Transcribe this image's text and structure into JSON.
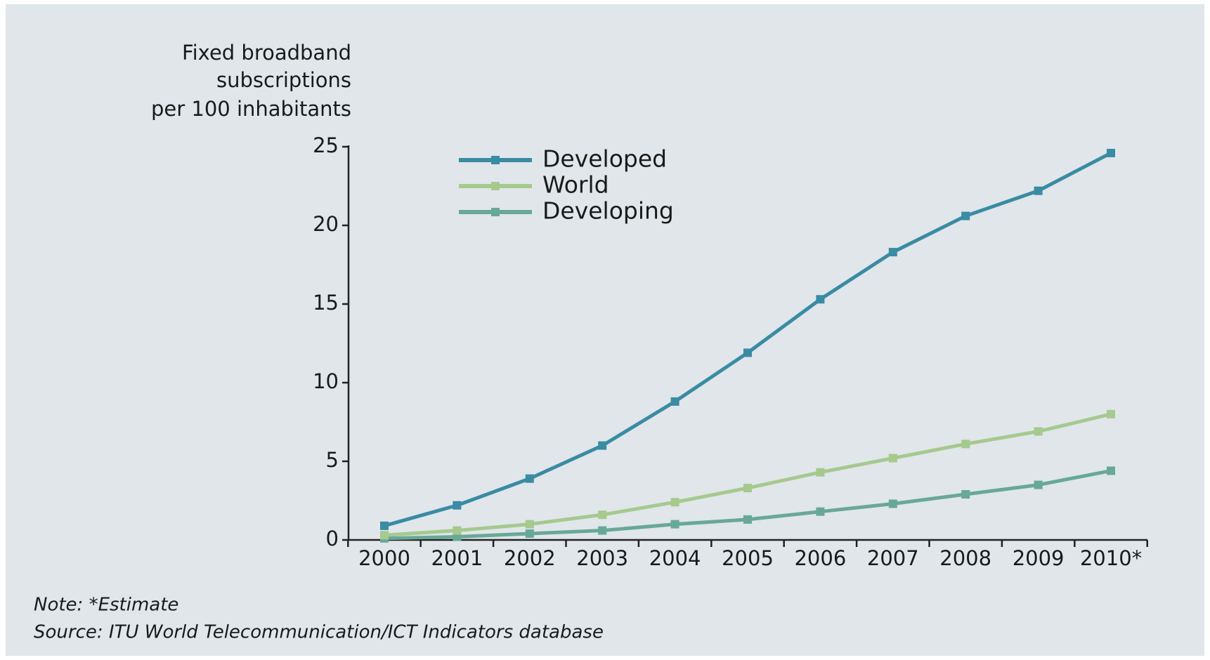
{
  "chart_data": {
    "type": "line",
    "ylabel": [
      "Fixed broadband",
      "subscriptions",
      "per 100 inhabitants"
    ],
    "categories": [
      "2000",
      "2001",
      "2002",
      "2003",
      "2004",
      "2005",
      "2006",
      "2007",
      "2008",
      "2009",
      "2010*"
    ],
    "series": [
      {
        "name": "Developed",
        "color": "#3a8ba3",
        "values": [
          0.9,
          2.2,
          3.9,
          6.0,
          8.8,
          11.9,
          15.3,
          18.3,
          20.6,
          22.2,
          24.6
        ]
      },
      {
        "name": "World",
        "color": "#a6c98e",
        "values": [
          0.3,
          0.6,
          1.0,
          1.6,
          2.4,
          3.3,
          4.3,
          5.2,
          6.1,
          6.9,
          8.0
        ]
      },
      {
        "name": "Developing",
        "color": "#68a897",
        "values": [
          0.1,
          0.2,
          0.4,
          0.6,
          1.0,
          1.3,
          1.8,
          2.3,
          2.9,
          3.5,
          4.4
        ]
      }
    ],
    "ylim": [
      0,
      25
    ],
    "yticks": [
      0,
      5,
      10,
      15,
      20,
      25
    ],
    "legend": "upper left",
    "notes": [
      "Note: *Estimate",
      "Source: ITU World Telecommunication/ICT Indicators database"
    ]
  }
}
